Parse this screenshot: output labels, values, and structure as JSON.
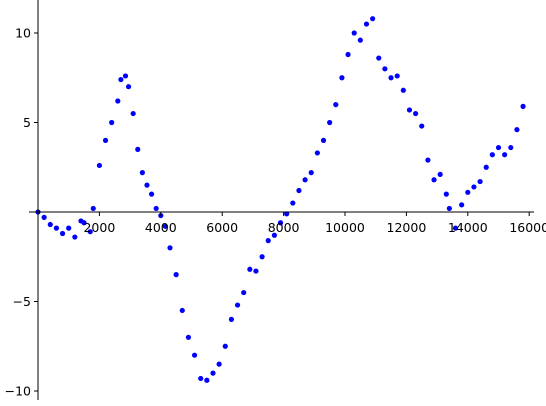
{
  "chart_data": {
    "type": "scatter",
    "xlim": [
      0,
      16000
    ],
    "ylim": [
      -10,
      12
    ],
    "x_ticks": [
      {
        "value": 2000,
        "label": "2000"
      },
      {
        "value": 4000,
        "label": "4000"
      },
      {
        "value": 6000,
        "label": "6000"
      },
      {
        "value": 8000,
        "label": "8000"
      },
      {
        "value": 10000,
        "label": "10000"
      },
      {
        "value": 12000,
        "label": "12000"
      },
      {
        "value": 14000,
        "label": "14000"
      },
      {
        "value": 16000,
        "label": "16000"
      }
    ],
    "y_ticks": [
      {
        "value": -10,
        "label": "−10"
      },
      {
        "value": -5,
        "label": "−5"
      },
      {
        "value": 5,
        "label": "5"
      },
      {
        "value": 10,
        "label": "10"
      }
    ],
    "grid": false,
    "series": [
      {
        "color": "#0000ff",
        "marker": "circle",
        "points": [
          [
            0,
            0
          ],
          [
            200,
            -0.3
          ],
          [
            400,
            -0.7
          ],
          [
            600,
            -0.9
          ],
          [
            800,
            -1.2
          ],
          [
            1000,
            -0.9
          ],
          [
            1200,
            -1.4
          ],
          [
            1400,
            -0.5
          ],
          [
            1500,
            -0.6
          ],
          [
            1700,
            -1.1
          ],
          [
            1800,
            0.2
          ],
          [
            2000,
            2.6
          ],
          [
            2200,
            4.0
          ],
          [
            2400,
            5.0
          ],
          [
            2600,
            6.2
          ],
          [
            2700,
            7.4
          ],
          [
            2850,
            7.6
          ],
          [
            2950,
            7.0
          ],
          [
            3100,
            5.5
          ],
          [
            3250,
            3.5
          ],
          [
            3400,
            2.2
          ],
          [
            3550,
            1.5
          ],
          [
            3700,
            1.0
          ],
          [
            3850,
            0.2
          ],
          [
            4000,
            -0.2
          ],
          [
            4150,
            -0.8
          ],
          [
            4300,
            -2.0
          ],
          [
            4500,
            -3.5
          ],
          [
            4700,
            -5.5
          ],
          [
            4900,
            -7.0
          ],
          [
            5100,
            -8.0
          ],
          [
            5300,
            -9.3
          ],
          [
            5500,
            -9.4
          ],
          [
            5700,
            -9.0
          ],
          [
            5900,
            -8.5
          ],
          [
            6100,
            -7.5
          ],
          [
            6300,
            -6.0
          ],
          [
            6500,
            -5.2
          ],
          [
            6700,
            -4.5
          ],
          [
            6900,
            -3.2
          ],
          [
            7100,
            -3.3
          ],
          [
            7300,
            -2.5
          ],
          [
            7500,
            -1.6
          ],
          [
            7700,
            -1.3
          ],
          [
            7900,
            -0.6
          ],
          [
            8100,
            -0.1
          ],
          [
            8300,
            0.5
          ],
          [
            8500,
            1.2
          ],
          [
            8700,
            1.8
          ],
          [
            8900,
            2.2
          ],
          [
            9100,
            3.3
          ],
          [
            9300,
            4.0
          ],
          [
            9500,
            5.0
          ],
          [
            9700,
            6.0
          ],
          [
            9900,
            7.5
          ],
          [
            10100,
            8.8
          ],
          [
            10300,
            10.0
          ],
          [
            10500,
            9.6
          ],
          [
            10700,
            10.5
          ],
          [
            10900,
            10.8
          ],
          [
            11100,
            8.6
          ],
          [
            11300,
            8.0
          ],
          [
            11500,
            7.5
          ],
          [
            11700,
            7.6
          ],
          [
            11900,
            6.8
          ],
          [
            12100,
            5.7
          ],
          [
            12300,
            5.5
          ],
          [
            12500,
            4.8
          ],
          [
            12700,
            2.9
          ],
          [
            12900,
            1.8
          ],
          [
            13100,
            2.1
          ],
          [
            13300,
            1.0
          ],
          [
            13400,
            0.2
          ],
          [
            13600,
            -0.9
          ],
          [
            13800,
            0.4
          ],
          [
            14000,
            1.1
          ],
          [
            14200,
            1.4
          ],
          [
            14400,
            1.7
          ],
          [
            14600,
            2.5
          ],
          [
            14800,
            3.2
          ],
          [
            15000,
            3.6
          ],
          [
            15200,
            3.2
          ],
          [
            15400,
            3.6
          ],
          [
            15600,
            4.6
          ],
          [
            15800,
            5.9
          ]
        ]
      }
    ]
  }
}
